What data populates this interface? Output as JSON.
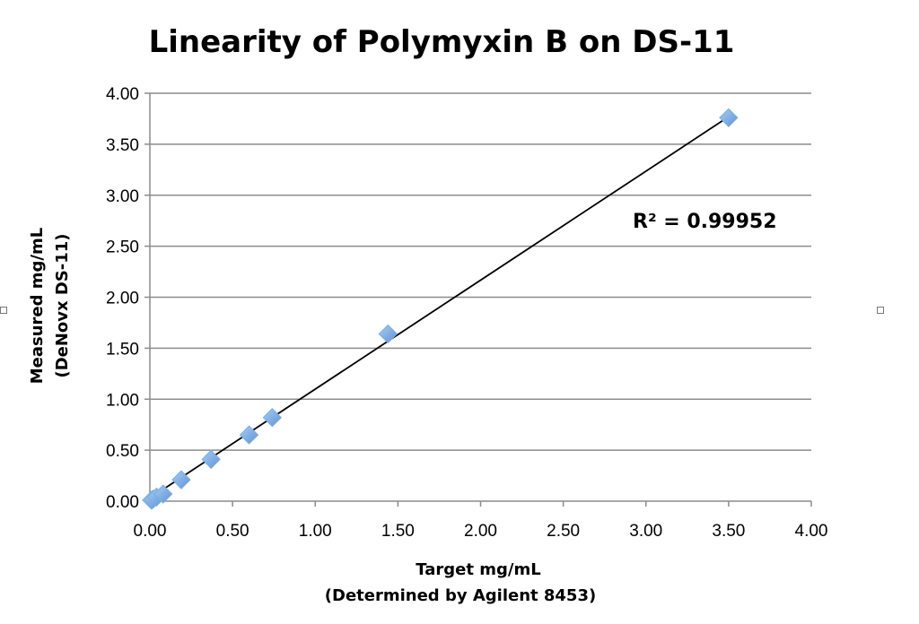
{
  "chart_data": {
    "type": "scatter",
    "title": "Linearity of Polymyxin B on DS-11",
    "xlabel": [
      "Target mg/mL",
      "(Determined by Agilent 8453)"
    ],
    "ylabel": [
      "Measured mg/mL",
      "(DeNovx DS-11)"
    ],
    "xlim": [
      0,
      4
    ],
    "ylim": [
      0,
      4
    ],
    "x_ticks": [
      "0.00",
      "0.50",
      "1.00",
      "1.50",
      "2.00",
      "2.50",
      "3.00",
      "3.50",
      "4.00"
    ],
    "y_ticks": [
      "0.00",
      "0.50",
      "1.00",
      "1.50",
      "2.00",
      "2.50",
      "3.00",
      "3.50",
      "4.00"
    ],
    "grid": true,
    "series": [
      {
        "marker": "diamond",
        "color": "#7aaee6",
        "x": [
          0.01,
          0.02,
          0.04,
          0.08,
          0.19,
          0.37,
          0.6,
          0.74,
          1.44,
          3.5
        ],
        "y": [
          0.01,
          0.02,
          0.04,
          0.07,
          0.21,
          0.41,
          0.65,
          0.82,
          1.64,
          3.76
        ]
      }
    ],
    "trendline": {
      "type": "linear",
      "x": [
        0.0,
        3.5
      ],
      "y": [
        0.03,
        3.77
      ]
    },
    "annotation": "R² = 0.99952"
  }
}
